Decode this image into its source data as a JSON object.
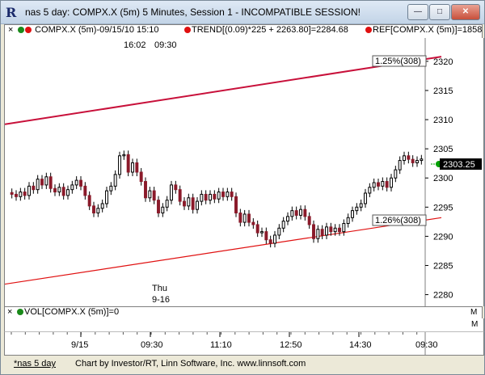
{
  "window": {
    "title": "nas 5 day: COMPX.X (5m) 5 Minutes, Session 1 - INCOMPATIBLE SESSION!",
    "minimize": "—",
    "maximize": "□",
    "close": "✕"
  },
  "legend": {
    "close_x": "×",
    "item1": "COMPX.X (5m)-09/15/10 15:10",
    "item2": "TREND[(0.09)*225 + 2263.80]=2284.68",
    "item3": "REF[COMPX.X (5m)]=1858",
    "item1_color": "#00a000",
    "item2_color": "#e00000",
    "item3_color": "#e00000",
    "time1": "16:02",
    "time2": "09:30"
  },
  "annotations": {
    "upper_line_label": "1.25%(308)",
    "lower_line_label": "1.26%(308)",
    "day_label": "Thu",
    "date_label": "9-16",
    "last_price": "2303.25"
  },
  "price_axis": {
    "labels": [
      "2320",
      "2315",
      "2310",
      "2305",
      "2300",
      "2295",
      "2290",
      "2285",
      "2280"
    ],
    "marker": "M"
  },
  "volume": {
    "close_x": "×",
    "label": "VOL[COMPX.X (5m)]=0",
    "marker": "M"
  },
  "time_axis": {
    "labels": [
      "9/15",
      "09:30",
      "11:10",
      "12:50",
      "14:30",
      "09:30"
    ]
  },
  "footer": {
    "tab": "*nas 5 day",
    "credit": "Chart by Investor/RT, Linn Software, Inc. www.linnsoft.com"
  },
  "colors": {
    "upper_trend": "#c8103a",
    "lower_trend": "#e01010",
    "candle_up": "#ffffff",
    "candle_down": "#8b1a2a",
    "price_tag_bg": "#000000",
    "price_arrow": "#00a000"
  },
  "chart_data": {
    "type": "candlestick",
    "title": "",
    "ylim": [
      2278,
      2324
    ],
    "bars": [
      [
        2297.5,
        2297.2
      ],
      [
        2297.2,
        2296.8
      ],
      [
        2296.8,
        2297.6
      ],
      [
        2297.6,
        2297.0
      ],
      [
        2297.0,
        2298.6
      ],
      [
        2298.6,
        2298.0
      ],
      [
        2298.0,
        2299.8
      ],
      [
        2299.8,
        2298.8
      ],
      [
        2298.8,
        2300.2
      ],
      [
        2300.2,
        2298.2
      ],
      [
        2298.2,
        2297.6
      ],
      [
        2297.6,
        2298.4
      ],
      [
        2298.4,
        2297.0
      ],
      [
        2297.0,
        2298.0
      ],
      [
        2298.0,
        2298.8
      ],
      [
        2298.8,
        2299.6
      ],
      [
        2299.6,
        2298.6
      ],
      [
        2298.6,
        2297.0
      ],
      [
        2297.0,
        2295.2
      ],
      [
        2295.2,
        2294.0
      ],
      [
        2294.0,
        2294.8
      ],
      [
        2294.8,
        2295.6
      ],
      [
        2295.6,
        2297.8
      ],
      [
        2297.8,
        2298.6
      ],
      [
        2298.6,
        2300.6
      ],
      [
        2300.6,
        2303.8
      ],
      [
        2303.8,
        2304.0
      ],
      [
        2304.0,
        2301.0
      ],
      [
        2301.0,
        2302.6
      ],
      [
        2302.6,
        2301.0
      ],
      [
        2301.0,
        2299.4
      ],
      [
        2299.4,
        2296.6
      ],
      [
        2296.6,
        2297.8
      ],
      [
        2297.8,
        2296.2
      ],
      [
        2296.2,
        2294.0
      ],
      [
        2294.0,
        2295.0
      ],
      [
        2295.0,
        2296.2
      ],
      [
        2296.2,
        2298.8
      ],
      [
        2298.8,
        2298.0
      ],
      [
        2298.0,
        2296.0
      ],
      [
        2296.0,
        2295.2
      ],
      [
        2295.2,
        2296.6
      ],
      [
        2296.6,
        2294.6
      ],
      [
        2294.6,
        2296.0
      ],
      [
        2296.0,
        2297.2
      ],
      [
        2297.2,
        2296.2
      ],
      [
        2296.2,
        2297.2
      ],
      [
        2297.2,
        2296.4
      ],
      [
        2296.4,
        2297.6
      ],
      [
        2297.6,
        2296.8
      ],
      [
        2296.8,
        2297.6
      ],
      [
        2297.6,
        2296.8
      ],
      [
        2296.8,
        2294.0
      ],
      [
        2294.0,
        2292.4
      ],
      [
        2292.4,
        2293.8
      ],
      [
        2293.8,
        2292.4
      ],
      [
        2292.4,
        2292.0
      ],
      [
        2292.0,
        2290.6
      ],
      [
        2290.6,
        2290.8
      ],
      [
        2290.8,
        2289.4
      ],
      [
        2289.4,
        2288.8
      ],
      [
        2288.8,
        2290.2
      ],
      [
        2290.2,
        2291.4
      ],
      [
        2291.4,
        2292.6
      ],
      [
        2292.6,
        2293.4
      ],
      [
        2293.4,
        2294.4
      ],
      [
        2294.4,
        2293.6
      ],
      [
        2293.6,
        2294.6
      ],
      [
        2294.6,
        2293.4
      ],
      [
        2293.4,
        2292.0
      ],
      [
        2292.0,
        2289.6
      ],
      [
        2289.6,
        2291.2
      ],
      [
        2291.2,
        2290.2
      ],
      [
        2290.2,
        2291.6
      ],
      [
        2291.6,
        2290.8
      ],
      [
        2290.8,
        2291.4
      ],
      [
        2291.4,
        2290.8
      ],
      [
        2290.8,
        2292.2
      ],
      [
        2292.2,
        2293.2
      ],
      [
        2293.2,
        2294.4
      ],
      [
        2294.4,
        2295.0
      ],
      [
        2295.0,
        2295.6
      ],
      [
        2295.6,
        2297.4
      ],
      [
        2297.4,
        2298.4
      ],
      [
        2298.4,
        2299.2
      ],
      [
        2299.2,
        2298.6
      ],
      [
        2298.6,
        2299.4
      ],
      [
        2299.4,
        2298.4
      ],
      [
        2298.4,
        2300.0
      ],
      [
        2300.0,
        2301.4
      ],
      [
        2301.4,
        2303.0
      ],
      [
        2303.0,
        2303.8
      ],
      [
        2303.8,
        2303.2
      ],
      [
        2303.2,
        2302.6
      ],
      [
        2302.6,
        2303.0
      ],
      [
        2303.0,
        2303.25
      ]
    ],
    "upper_trend": [
      [
        0,
        2309.2
      ],
      [
        95,
        2320.8
      ]
    ],
    "lower_trend": [
      [
        0,
        2281.8
      ],
      [
        95,
        2293.2
      ]
    ]
  }
}
